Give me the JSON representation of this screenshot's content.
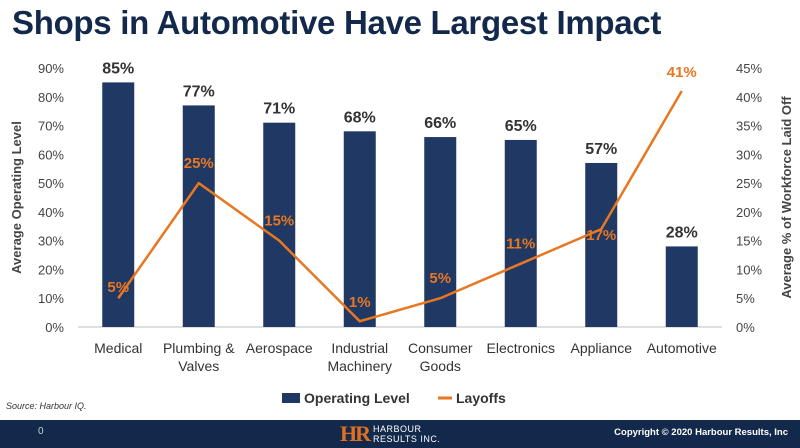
{
  "title": "Shops in Automotive Have Largest Impact",
  "source": "Source: Harbour IQ.",
  "footer": {
    "slide_number": "0",
    "logo_mark": "HR",
    "logo_line1": "HARBOUR",
    "logo_line2": "RESULTS INC.",
    "copyright": "Copyright © 2020 Harbour Results, Inc"
  },
  "colors": {
    "bar": "#203864",
    "line": "#e87722",
    "title": "#13294b",
    "footer": "#13294b"
  },
  "chart_data": {
    "type": "bar",
    "categories": [
      "Medical",
      "Plumbing & Valves",
      "Aerospace",
      "Industrial Machinery",
      "Consumer Goods",
      "Electronics",
      "Appliance",
      "Automotive"
    ],
    "category_lines": [
      [
        "Medical"
      ],
      [
        "Plumbing &",
        "Valves"
      ],
      [
        "Aerospace"
      ],
      [
        "Industrial",
        "Machinery"
      ],
      [
        "Consumer",
        "Goods"
      ],
      [
        "Electronics"
      ],
      [
        "Appliance"
      ],
      [
        "Automotive"
      ]
    ],
    "series": [
      {
        "name": "Operating Level",
        "type": "bar",
        "axis": "left",
        "values": [
          85,
          77,
          71,
          68,
          66,
          65,
          57,
          28
        ],
        "labels": [
          "85%",
          "77%",
          "71%",
          "68%",
          "66%",
          "65%",
          "57%",
          "28%"
        ]
      },
      {
        "name": "Layoffs",
        "type": "line",
        "axis": "right",
        "values": [
          5,
          25,
          15,
          1,
          5,
          11,
          17,
          41
        ],
        "labels": [
          "5%",
          "25%",
          "15%",
          "1%",
          "5%",
          "11%",
          "17%",
          "41%"
        ]
      }
    ],
    "ylabel": "Average Operating Level",
    "y2label": "Average % of Workforce Laid Off",
    "ylim": [
      0,
      90
    ],
    "y2lim": [
      0,
      45
    ],
    "yticks": [
      "0%",
      "10%",
      "20%",
      "30%",
      "40%",
      "50%",
      "60%",
      "70%",
      "80%",
      "90%"
    ],
    "y2ticks": [
      "0%",
      "5%",
      "10%",
      "15%",
      "20%",
      "25%",
      "30%",
      "35%",
      "40%",
      "45%"
    ],
    "grid": false,
    "legend": "bottom"
  }
}
